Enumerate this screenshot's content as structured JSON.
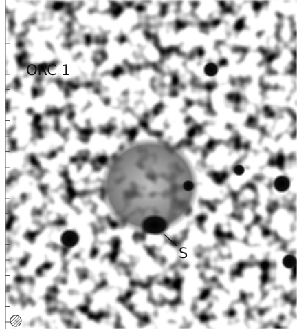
{
  "labels": {
    "title": "ORC 1",
    "source": "S"
  }
}
